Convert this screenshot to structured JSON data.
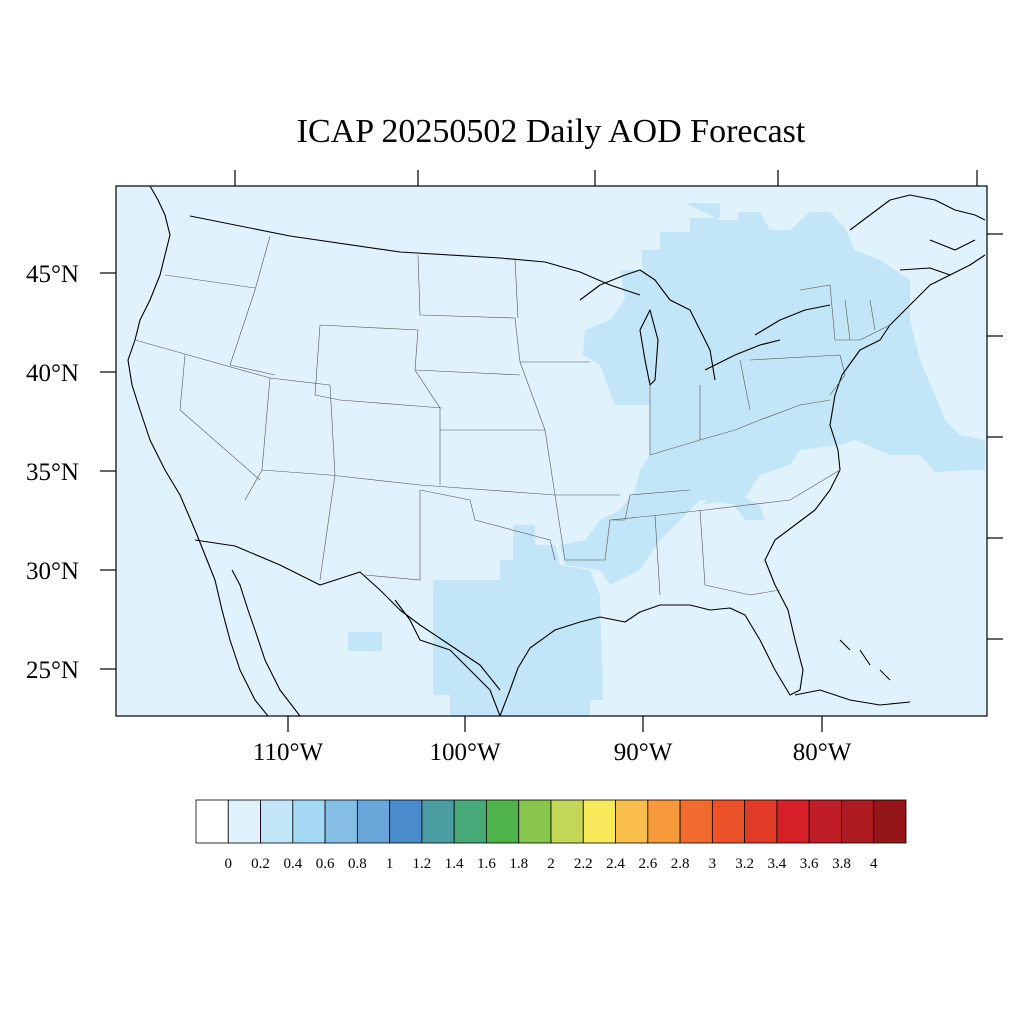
{
  "title": "ICAP 20250502 Daily AOD Forecast",
  "map": {
    "lat_labels": [
      "45°N",
      "40°N",
      "35°N",
      "30°N",
      "25°N"
    ],
    "lon_labels": [
      "110°W",
      "100°W",
      "90°W",
      "80°W"
    ]
  },
  "colorbar": {
    "tick_labels": [
      "0",
      "0.2",
      "0.4",
      "0.6",
      "0.8",
      "1",
      "1.2",
      "1.4",
      "1.6",
      "1.8",
      "2",
      "2.2",
      "2.4",
      "2.6",
      "2.8",
      "3",
      "3.2",
      "3.4",
      "3.6",
      "3.8",
      "4"
    ],
    "colors": [
      "#ffffff",
      "#e0f3fc",
      "#c2e6f8",
      "#a5d8f3",
      "#86bfe5",
      "#6aa7da",
      "#4a8ccb",
      "#4a9ea1",
      "#47a878",
      "#4db34a",
      "#88c54d",
      "#c4d656",
      "#f8e95b",
      "#f8bf4c",
      "#f69a3c",
      "#f26b2e",
      "#ec5229",
      "#e13b27",
      "#d62028",
      "#bf1e26",
      "#ad1a1f",
      "#951619"
    ]
  },
  "aod_fields": {
    "background_color": "#e0f3fc",
    "plume_color": "#c2e6f8",
    "background_level": "0.2",
    "plume_level": "0.4"
  }
}
